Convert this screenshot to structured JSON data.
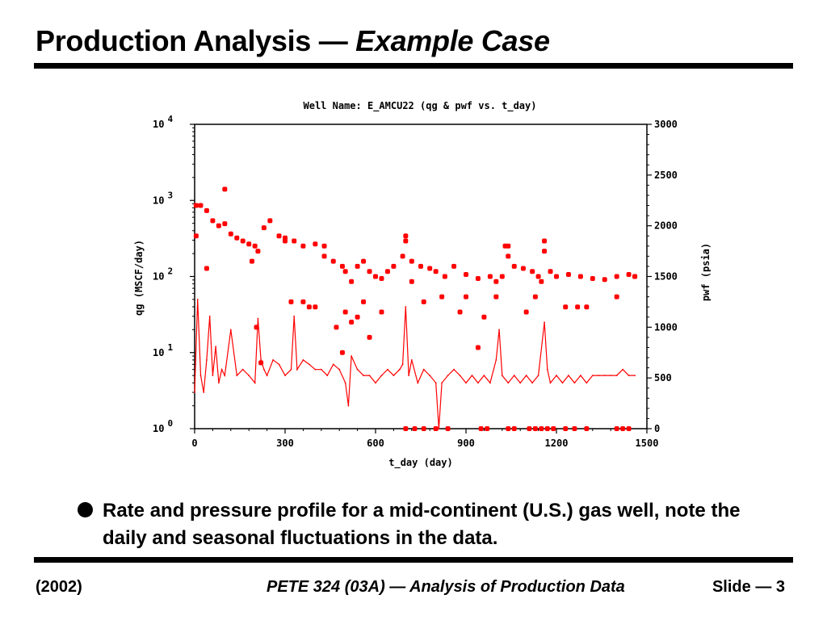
{
  "slide": {
    "title_main": "Production Analysis — ",
    "title_italic": "Example Case",
    "bullet": "Rate and pressure profile for a mid-continent (U.S.) gas well, note the daily and seasonal fluctuations in the data.",
    "footer_left": "(2002)",
    "footer_center": "PETE 324 (03A) — Analysis of Production Data",
    "footer_right": "Slide — 3"
  },
  "chart_data": {
    "type": "scatter",
    "title": "Well Name: E_AMCU22 (qg & pwf vs. t_day)",
    "xlabel": "t_day (day)",
    "ylabel_left": "qg (MSCF/day)",
    "ylabel_right": "pwf (psia)",
    "x_range": [
      0,
      1500
    ],
    "x_ticks": [
      0,
      300,
      600,
      900,
      1200,
      1500
    ],
    "left_axis": {
      "scale": "log",
      "range": [
        1,
        10000
      ],
      "tick_labels": [
        "10^0",
        "10^1",
        "10^2",
        "10^3",
        "10^4"
      ]
    },
    "right_axis": {
      "scale": "linear",
      "range": [
        0,
        3000
      ],
      "ticks": [
        0,
        500,
        1000,
        1500,
        2000,
        2500,
        3000
      ]
    },
    "grid": false,
    "legend": "none",
    "color": "#ff0000",
    "series": [
      {
        "description": "pwf (psia), plotted as markers on right axis",
        "axis": "right",
        "style": "markers",
        "x": [
          5,
          20,
          40,
          60,
          80,
          100,
          120,
          140,
          160,
          180,
          200,
          210,
          230,
          250,
          280,
          300,
          330,
          360,
          400,
          430,
          460,
          490,
          500,
          520,
          540,
          560,
          580,
          600,
          620,
          640,
          660,
          690,
          700,
          720,
          750,
          780,
          800,
          830,
          860,
          900,
          940,
          980,
          1000,
          1020,
          1030,
          1040,
          1060,
          1090,
          1120,
          1140,
          1150,
          1160,
          1180,
          1200,
          1240,
          1280,
          1320,
          1360,
          1400,
          1440,
          1460
        ],
        "y": [
          2200,
          2200,
          2150,
          2050,
          2000,
          2020,
          1920,
          1880,
          1850,
          1820,
          1800,
          1750,
          1980,
          2050,
          1900,
          1880,
          1850,
          1800,
          1820,
          1700,
          1650,
          1600,
          1550,
          1450,
          1600,
          1650,
          1550,
          1500,
          1480,
          1550,
          1600,
          1700,
          1850,
          1650,
          1600,
          1580,
          1550,
          1500,
          1600,
          1520,
          1480,
          1500,
          1450,
          1500,
          1800,
          1700,
          1600,
          1580,
          1550,
          1500,
          1450,
          1750,
          1550,
          1500,
          1520,
          1500,
          1480,
          1470,
          1500,
          1520,
          1500
        ]
      },
      {
        "description": "pwf outliers on right axis",
        "axis": "right",
        "style": "markers",
        "x": [
          5,
          40,
          100,
          190,
          205,
          220,
          300,
          320,
          360,
          380,
          400,
          430,
          470,
          490,
          500,
          520,
          540,
          560,
          580,
          620,
          700,
          720,
          760,
          820,
          880,
          900,
          940,
          960,
          1000,
          1040,
          1100,
          1130,
          1160,
          1230,
          1270,
          1300,
          1400,
          1460
        ],
        "y": [
          1900,
          1580,
          2360,
          1650,
          1000,
          650,
          1850,
          1250,
          1250,
          1200,
          1200,
          1800,
          1000,
          750,
          1150,
          1050,
          1100,
          1250,
          900,
          1150,
          1900,
          1450,
          1250,
          1300,
          1150,
          1300,
          800,
          1100,
          1300,
          1800,
          1150,
          1300,
          1850,
          1200,
          1200,
          1200,
          1300,
          1500
        ]
      },
      {
        "description": "pwf zero readings on right axis",
        "axis": "right",
        "style": "markers",
        "x": [
          700,
          730,
          760,
          800,
          840,
          950,
          970,
          1040,
          1060,
          1110,
          1130,
          1150,
          1170,
          1190,
          1230,
          1260,
          1300,
          1400,
          1420,
          1440
        ],
        "y": [
          0,
          0,
          0,
          0,
          0,
          0,
          0,
          0,
          0,
          0,
          0,
          0,
          0,
          0,
          0,
          0,
          0,
          0,
          0,
          0
        ]
      },
      {
        "description": "qg (MSCF/day), plotted as line on left log axis",
        "axis": "left",
        "style": "line",
        "x": [
          0,
          10,
          20,
          30,
          40,
          50,
          60,
          70,
          80,
          90,
          100,
          120,
          140,
          160,
          180,
          200,
          210,
          220,
          230,
          240,
          260,
          280,
          300,
          320,
          330,
          340,
          360,
          380,
          400,
          420,
          440,
          460,
          480,
          500,
          510,
          520,
          540,
          560,
          580,
          600,
          620,
          640,
          660,
          680,
          690,
          700,
          710,
          720,
          740,
          760,
          780,
          800,
          810,
          820,
          840,
          860,
          880,
          900,
          920,
          940,
          960,
          980,
          1000,
          1010,
          1020,
          1040,
          1060,
          1080,
          1100,
          1120,
          1140,
          1160,
          1170,
          1180,
          1200,
          1220,
          1240,
          1260,
          1280,
          1300,
          1320,
          1340,
          1360,
          1380,
          1400,
          1420,
          1440,
          1460
        ],
        "y": [
          3,
          50,
          5,
          3,
          8,
          30,
          5,
          12,
          4,
          6,
          5,
          20,
          5,
          6,
          5,
          4,
          28,
          8,
          6,
          5,
          8,
          7,
          5,
          6,
          30,
          6,
          8,
          7,
          6,
          6,
          5,
          7,
          6,
          4,
          2,
          9,
          6,
          5,
          5,
          4,
          5,
          6,
          5,
          6,
          7,
          40,
          5,
          8,
          4,
          6,
          5,
          4,
          1,
          4,
          5,
          6,
          5,
          4,
          5,
          4,
          5,
          4,
          8,
          20,
          5,
          4,
          5,
          4,
          5,
          4,
          5,
          25,
          6,
          4,
          5,
          4,
          5,
          4,
          5,
          4,
          5,
          5,
          5,
          5,
          5,
          6,
          5,
          5
        ]
      }
    ]
  }
}
